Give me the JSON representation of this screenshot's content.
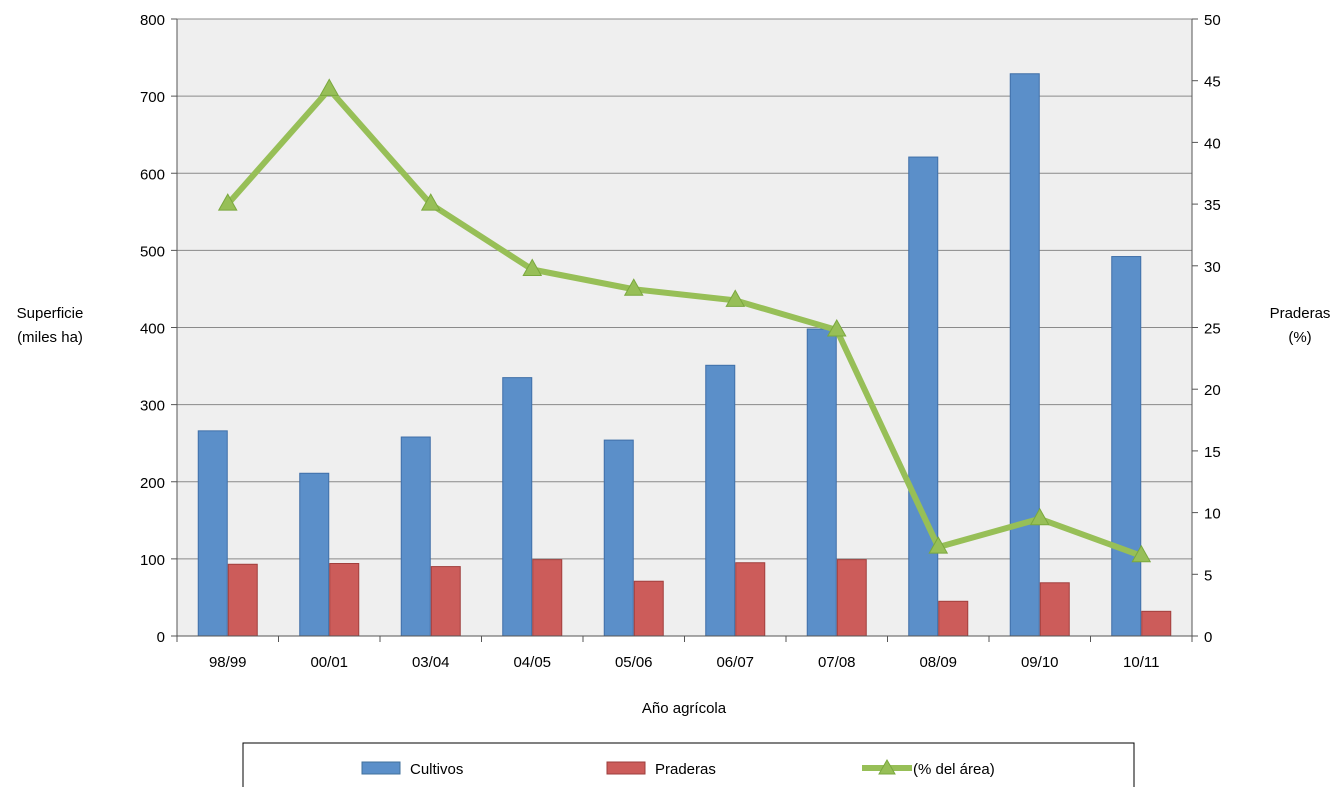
{
  "chart_data": {
    "type": "bar",
    "categories": [
      "98/99",
      "00/01",
      "03/04",
      "04/05",
      "05/06",
      "06/07",
      "07/08",
      "08/09",
      "09/10",
      "10/11"
    ],
    "series": [
      {
        "name": "Cultivos",
        "type": "bar",
        "axis": "left",
        "color": "#5b8fc9",
        "values": [
          266,
          211,
          258,
          335,
          254,
          351,
          398,
          621,
          729,
          492
        ]
      },
      {
        "name": "Praderas",
        "type": "bar",
        "axis": "left",
        "color": "#cc5c5a",
        "values": [
          93,
          94,
          90,
          99,
          71,
          95,
          99,
          45,
          69,
          32
        ]
      },
      {
        "name": "(% del área)",
        "type": "line",
        "axis": "right",
        "color": "#97bf57",
        "values": [
          35,
          44.3,
          35,
          29.7,
          28.1,
          27.2,
          24.8,
          7.2,
          9.5,
          6.5
        ]
      }
    ],
    "xlabel": "Año agrícola",
    "ylabel_left": [
      "Superficie",
      "(miles ha)"
    ],
    "ylabel_right": [
      "Praderas",
      "(%)"
    ],
    "ylim_left": [
      0,
      800
    ],
    "ylim_right": [
      0,
      50
    ],
    "yticks_left": [
      "0",
      "100",
      "200",
      "300",
      "400",
      "500",
      "600",
      "700",
      "800"
    ],
    "yticks_right": [
      "0",
      "5",
      "10",
      "15",
      "20",
      "25",
      "30",
      "35",
      "40",
      "45",
      "50"
    ],
    "grid": true,
    "plot_background": "#efefef",
    "legend_position": "bottom"
  }
}
